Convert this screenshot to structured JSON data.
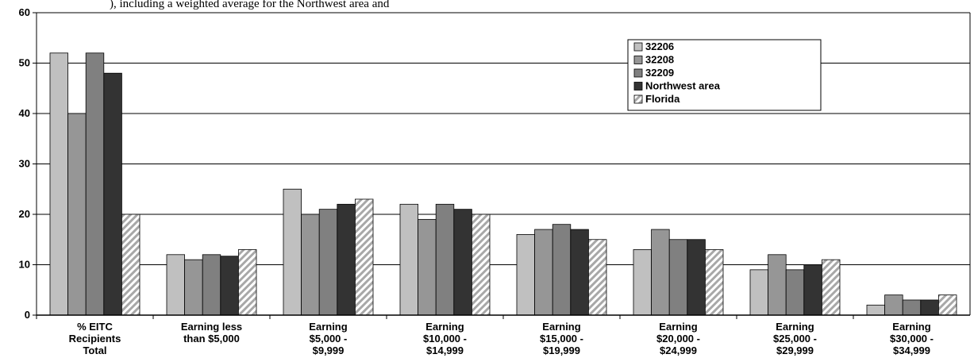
{
  "header_fragment": "), including a weighted average for the Northwest area and",
  "colors": {
    "s32206": "#c0c0c0",
    "s32208": "#969696",
    "s32209": "#808080",
    "northwest": "#333333",
    "florida_stripe": "#a8a8a8",
    "grid": "#000000"
  },
  "chart_data": {
    "type": "bar",
    "title": "",
    "xlabel": "",
    "ylabel": "",
    "ylim": [
      0,
      60
    ],
    "yticks": [
      0,
      10,
      20,
      30,
      40,
      50,
      60
    ],
    "grid": true,
    "legend_position": "top-right",
    "categories": [
      [
        "% EITC",
        "Recipients",
        "Total"
      ],
      [
        "Earning less",
        "than $5,000"
      ],
      [
        "Earning",
        "$5,000 -",
        "$9,999"
      ],
      [
        "Earning",
        "$10,000 -",
        "$14,999"
      ],
      [
        "Earning",
        "$15,000 -",
        "$19,999"
      ],
      [
        "Earning",
        "$20,000 -",
        "$24,999"
      ],
      [
        "Earning",
        "$25,000 -",
        "$29,999"
      ],
      [
        "Earning",
        "$30,000 -",
        "$34,999"
      ]
    ],
    "series": [
      {
        "name": "32206",
        "pattern": "solid",
        "color_key": "s32206",
        "values": [
          52,
          12,
          25,
          22,
          16,
          13,
          9,
          2
        ]
      },
      {
        "name": "32208",
        "pattern": "solid",
        "color_key": "s32208",
        "values": [
          40,
          11,
          20,
          19,
          17,
          17,
          12,
          4
        ]
      },
      {
        "name": "32209",
        "pattern": "solid",
        "color_key": "s32209",
        "values": [
          52,
          12,
          21,
          22,
          18,
          15,
          9,
          3
        ]
      },
      {
        "name": "Northwest area",
        "pattern": "solid",
        "color_key": "northwest",
        "values": [
          48,
          11.7,
          22,
          21,
          17,
          15,
          10,
          3
        ]
      },
      {
        "name": "Florida",
        "pattern": "stripes",
        "color_key": "florida_stripe",
        "values": [
          20,
          13,
          23,
          20,
          15,
          13,
          11,
          4
        ]
      }
    ]
  }
}
